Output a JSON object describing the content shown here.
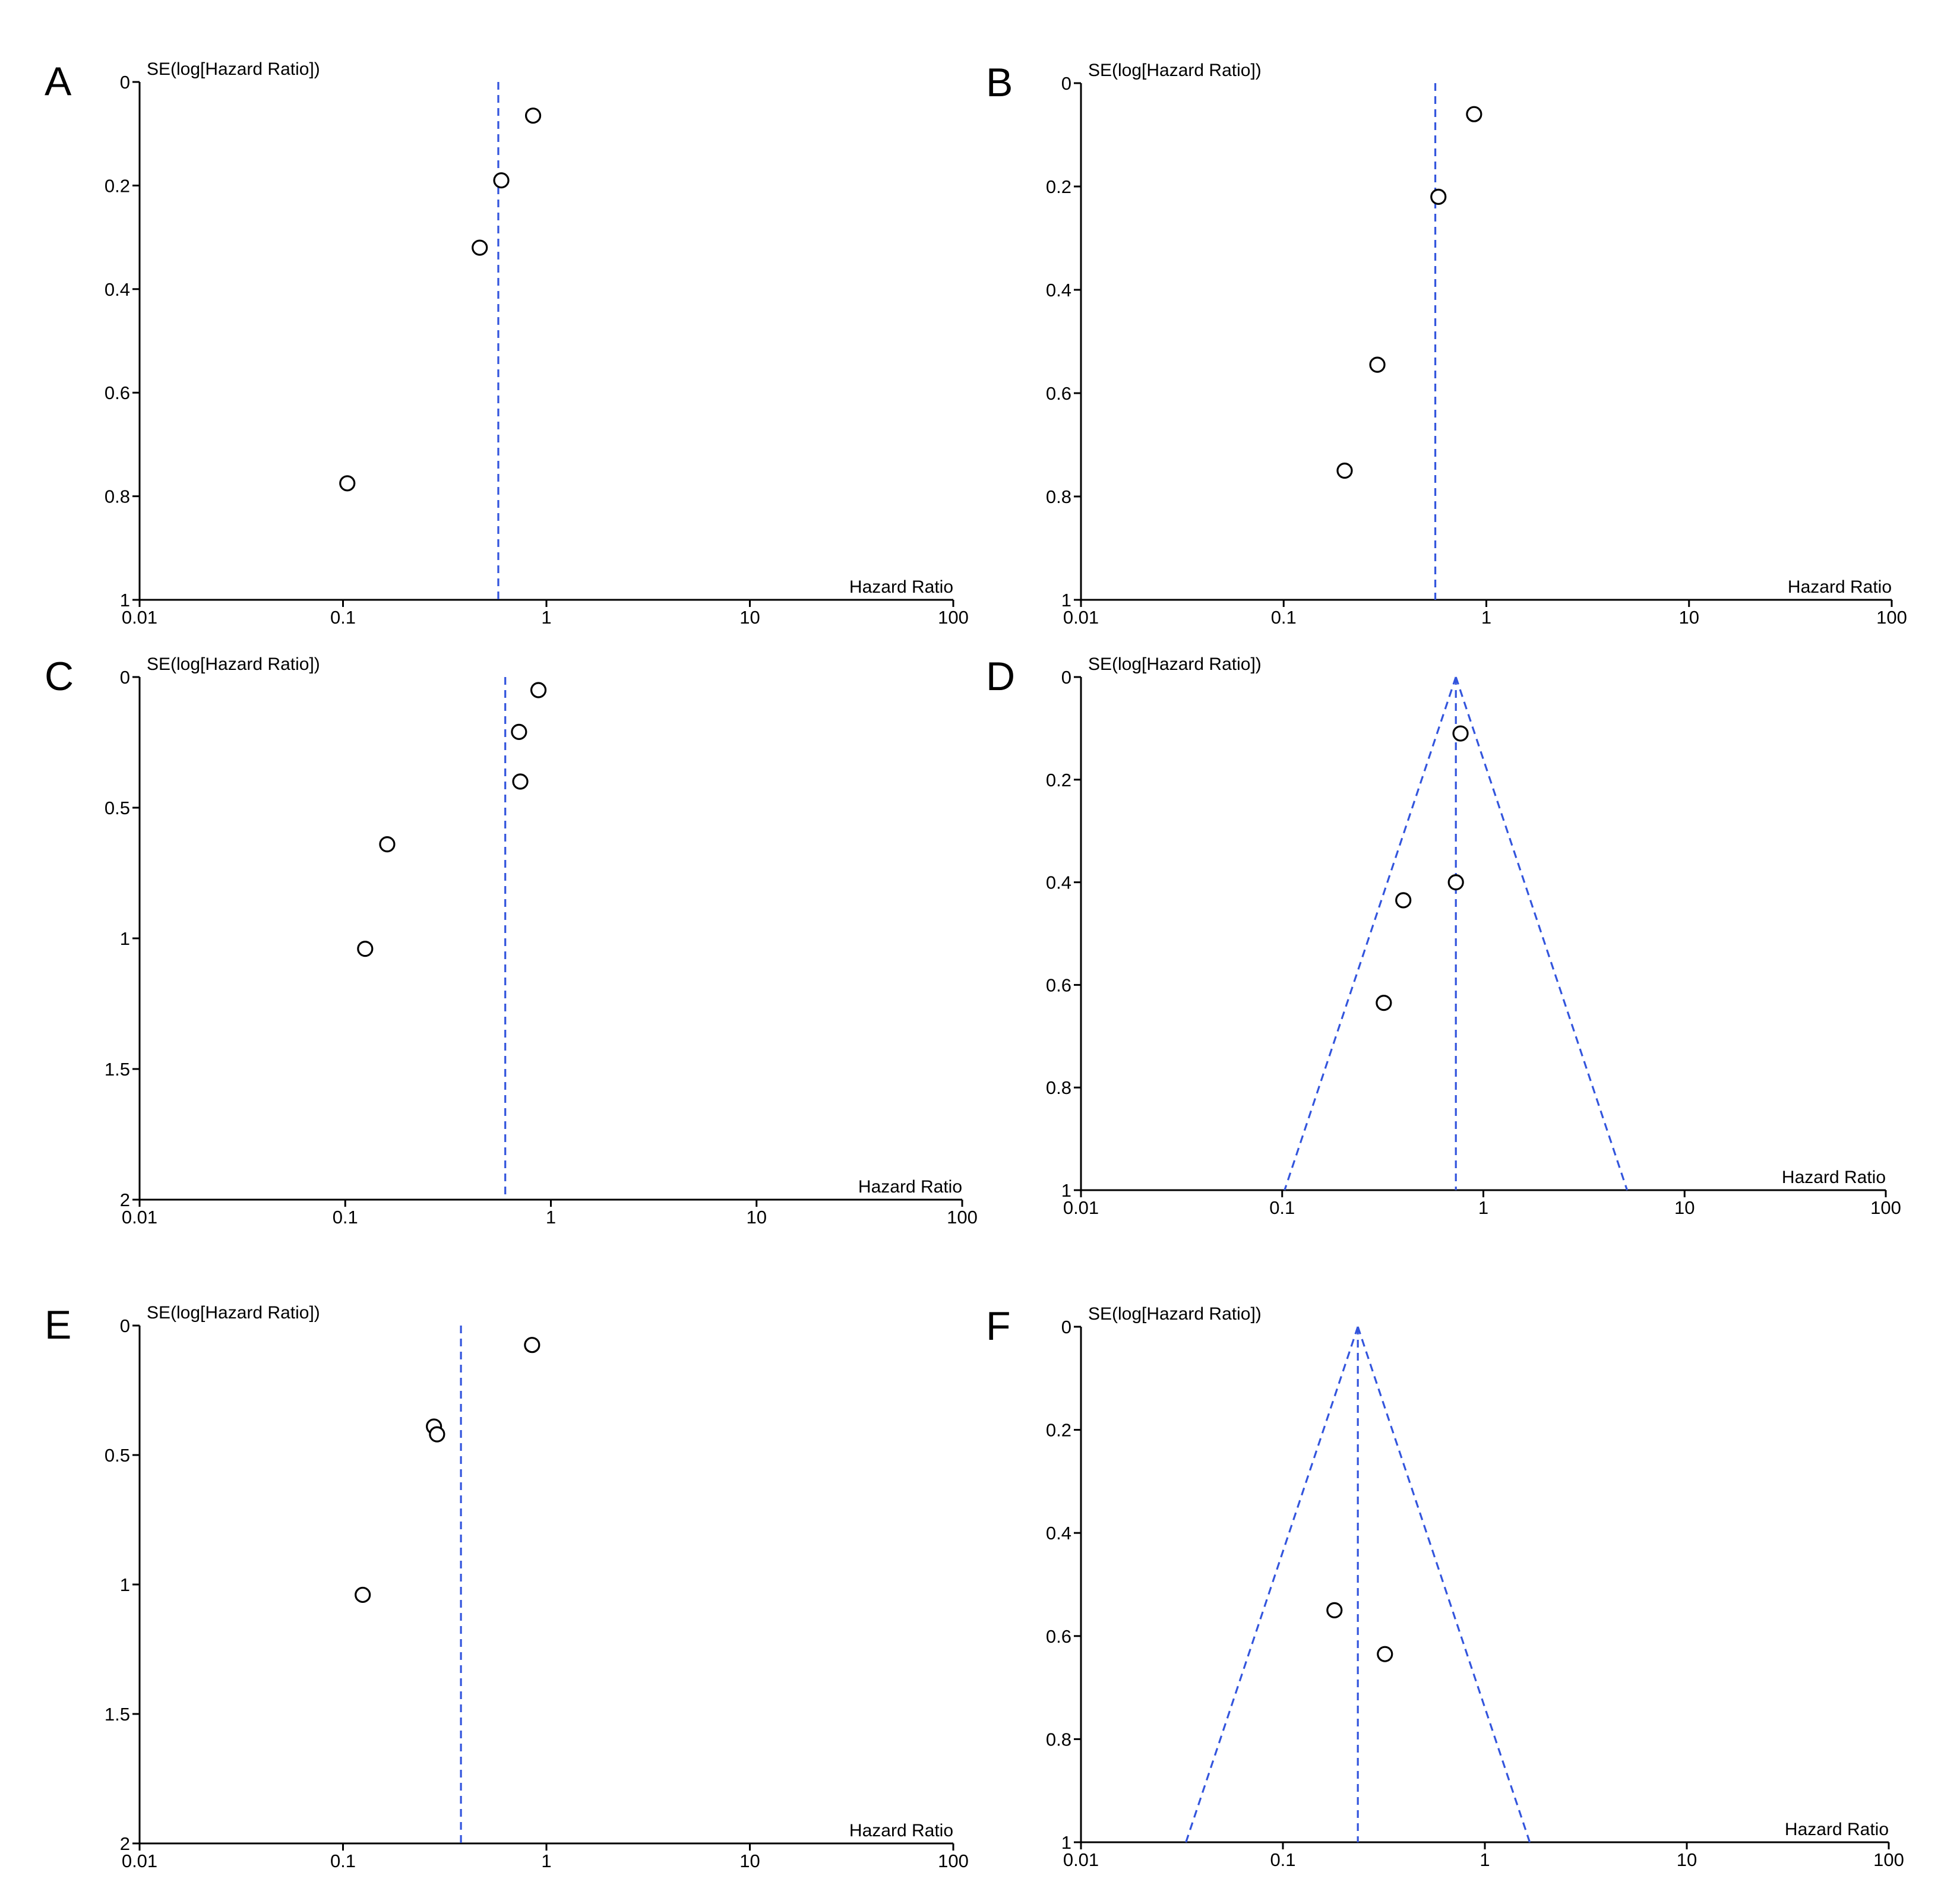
{
  "colors": {
    "axis": "#000000",
    "guide": "#3355dd",
    "marker_fill": "#ffffff",
    "marker_stroke": "#000000"
  },
  "chart_data": [
    {
      "panel": "A",
      "type": "scatter",
      "xlabel": "Hazard Ratio",
      "ylabel": "SE(log[Hazard Ratio])",
      "xscale": "log",
      "xlim": [
        0.01,
        100
      ],
      "xticks": [
        0.01,
        0.1,
        1,
        10,
        100
      ],
      "xtick_labels": [
        "0.01",
        "0.1",
        "1",
        "10",
        "100"
      ],
      "ylim": [
        0,
        1
      ],
      "yaxis_inverted": true,
      "yticks": [
        0,
        0.2,
        0.4,
        0.6,
        0.8,
        1
      ],
      "ytick_labels": [
        "0",
        "0.2",
        "0.4",
        "0.6",
        "0.8",
        "1"
      ],
      "pooled_estimate": 0.58,
      "funnel": false,
      "points": [
        {
          "x": 0.86,
          "y": 0.065
        },
        {
          "x": 0.6,
          "y": 0.19
        },
        {
          "x": 0.47,
          "y": 0.32
        },
        {
          "x": 0.105,
          "y": 0.775
        }
      ]
    },
    {
      "panel": "B",
      "type": "scatter",
      "xlabel": "Hazard Ratio",
      "ylabel": "SE(log[Hazard Ratio])",
      "xscale": "log",
      "xlim": [
        0.01,
        100
      ],
      "xticks": [
        0.01,
        0.1,
        1,
        10,
        100
      ],
      "xtick_labels": [
        "0.01",
        "0.1",
        "1",
        "10",
        "100"
      ],
      "ylim": [
        0,
        1
      ],
      "yaxis_inverted": true,
      "yticks": [
        0,
        0.2,
        0.4,
        0.6,
        0.8,
        1
      ],
      "ytick_labels": [
        "0",
        "0.2",
        "0.4",
        "0.6",
        "0.8",
        "1"
      ],
      "pooled_estimate": 0.56,
      "funnel": false,
      "points": [
        {
          "x": 0.87,
          "y": 0.06
        },
        {
          "x": 0.58,
          "y": 0.22
        },
        {
          "x": 0.29,
          "y": 0.545
        },
        {
          "x": 0.2,
          "y": 0.75
        }
      ]
    },
    {
      "panel": "C",
      "type": "scatter",
      "xlabel": "Hazard Ratio",
      "ylabel": "SE(log[Hazard Ratio])",
      "xscale": "log",
      "xlim": [
        0.01,
        100
      ],
      "xticks": [
        0.01,
        0.1,
        1,
        10,
        100
      ],
      "xtick_labels": [
        "0.01",
        "0.1",
        "1",
        "10",
        "100"
      ],
      "ylim": [
        0,
        2
      ],
      "yaxis_inverted": true,
      "yticks": [
        0,
        0.5,
        1,
        1.5,
        2
      ],
      "ytick_labels": [
        "0",
        "0.5",
        "1",
        "1.5",
        "2"
      ],
      "pooled_estimate": 0.6,
      "funnel": false,
      "points": [
        {
          "x": 0.87,
          "y": 0.05
        },
        {
          "x": 0.7,
          "y": 0.21
        },
        {
          "x": 0.71,
          "y": 0.4
        },
        {
          "x": 0.16,
          "y": 0.64
        },
        {
          "x": 0.125,
          "y": 1.04
        }
      ]
    },
    {
      "panel": "D",
      "type": "scatter",
      "xlabel": "Hazard Ratio",
      "ylabel": "SE(log[Hazard Ratio])",
      "xscale": "log",
      "xlim": [
        0.01,
        100
      ],
      "xticks": [
        0.01,
        0.1,
        1,
        10,
        100
      ],
      "xtick_labels": [
        "0.01",
        "0.1",
        "1",
        "10",
        "100"
      ],
      "ylim": [
        0,
        1
      ],
      "yaxis_inverted": true,
      "yticks": [
        0,
        0.2,
        0.4,
        0.6,
        0.8,
        1
      ],
      "ytick_labels": [
        "0",
        "0.2",
        "0.4",
        "0.6",
        "0.8",
        "1"
      ],
      "pooled_estimate": 0.73,
      "funnel": true,
      "points": [
        {
          "x": 0.77,
          "y": 0.11
        },
        {
          "x": 0.73,
          "y": 0.4
        },
        {
          "x": 0.4,
          "y": 0.435
        },
        {
          "x": 0.32,
          "y": 0.635
        }
      ]
    },
    {
      "panel": "E",
      "type": "scatter",
      "xlabel": "Hazard Ratio",
      "ylabel": "SE(log[Hazard Ratio])",
      "xscale": "log",
      "xlim": [
        0.01,
        100
      ],
      "xticks": [
        0.01,
        0.1,
        1,
        10,
        100
      ],
      "xtick_labels": [
        "0.01",
        "0.1",
        "1",
        "10",
        "100"
      ],
      "ylim": [
        0,
        2
      ],
      "yaxis_inverted": true,
      "yticks": [
        0,
        0.5,
        1,
        1.5,
        2
      ],
      "ytick_labels": [
        "0",
        "0.5",
        "1",
        "1.5",
        "2"
      ],
      "pooled_estimate": 0.38,
      "funnel": false,
      "points": [
        {
          "x": 0.85,
          "y": 0.075
        },
        {
          "x": 0.28,
          "y": 0.39
        },
        {
          "x": 0.29,
          "y": 0.42
        },
        {
          "x": 0.125,
          "y": 1.04
        }
      ]
    },
    {
      "panel": "F",
      "type": "scatter",
      "xlabel": "Hazard Ratio",
      "ylabel": "SE(log[Hazard Ratio])",
      "xscale": "log",
      "xlim": [
        0.01,
        100
      ],
      "xticks": [
        0.01,
        0.1,
        1,
        10,
        100
      ],
      "xtick_labels": [
        "0.01",
        "0.1",
        "1",
        "10",
        "100"
      ],
      "ylim": [
        0,
        1
      ],
      "yaxis_inverted": true,
      "yticks": [
        0,
        0.2,
        0.4,
        0.6,
        0.8,
        1
      ],
      "ytick_labels": [
        "0",
        "0.2",
        "0.4",
        "0.6",
        "0.8",
        "1"
      ],
      "pooled_estimate": 0.235,
      "funnel": true,
      "points": [
        {
          "x": 0.18,
          "y": 0.55
        },
        {
          "x": 0.32,
          "y": 0.635
        }
      ]
    }
  ]
}
